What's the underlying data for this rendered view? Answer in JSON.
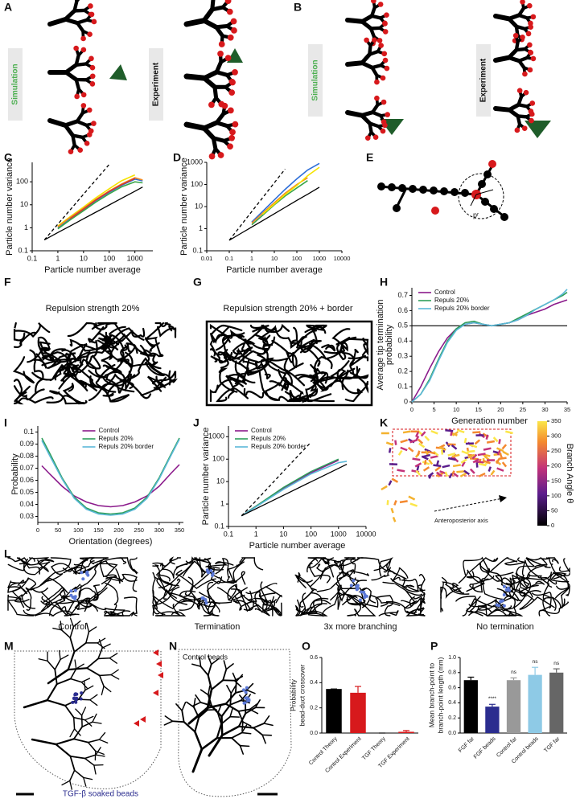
{
  "panels": [
    {
      "panel": "A",
      "labels": [
        "Simulation",
        "Experiment"
      ]
    },
    {
      "panel": "B",
      "labels": [
        "Simulation",
        "Experiment"
      ]
    },
    {
      "panel": "E",
      "label": "pʳ"
    },
    {
      "panel": "F",
      "title": "Repulsion strength 20%"
    },
    {
      "panel": "G",
      "title": "Repulsion strength 20% + border"
    },
    {
      "panel": "K",
      "colorbar_label": "Branch Angle θ",
      "colorbar_lim": [
        0,
        350
      ],
      "colorbar_ticks": [
        0,
        50,
        100,
        150,
        200,
        250,
        300,
        350
      ],
      "annotation": "Anteroposterior axis"
    },
    {
      "panel": "L",
      "captions": [
        "Control",
        "Termination",
        "3x more branching",
        "No termination"
      ]
    },
    {
      "panel": "M",
      "annotation": "TGF-β soaked beads"
    },
    {
      "panel": "N",
      "annotation": "Control beads"
    }
  ],
  "chart_data": [
    {
      "panel": "C",
      "type": "line",
      "xlog": true,
      "ylog": true,
      "xlabel": "Particle number average",
      "ylabel": [
        "Particle number variance"
      ],
      "xlim": [
        0.1,
        5000
      ],
      "ylim": [
        0.1,
        700
      ],
      "xticks": [
        0.1,
        1,
        10,
        100,
        1000
      ],
      "yticks": [
        0.1,
        1,
        10,
        100
      ],
      "x": [
        0.3,
        1,
        3,
        10,
        30,
        100,
        300,
        1000,
        2000
      ],
      "series": [
        {
          "color": "#000000",
          "style": "dashed",
          "values": [
            0.3,
            1.43,
            6,
            28.7,
            119,
            572,
            null,
            null,
            null
          ]
        },
        {
          "color": "#000000",
          "style": "solid",
          "values": [
            0.3,
            0.62,
            1.19,
            2.46,
            4.75,
            9.8,
            19,
            39,
            59
          ]
        },
        {
          "color": "#f5e300",
          "style": "solid",
          "values": [
            null,
            1.2,
            3,
            8,
            20,
            50,
            110,
            200,
            null
          ]
        },
        {
          "color": "#2f6fd8",
          "style": "solid",
          "values": [
            null,
            1,
            2.5,
            6,
            15,
            35,
            70,
            130,
            110
          ]
        },
        {
          "color": "#3aa64a",
          "style": "solid",
          "values": [
            null,
            0.9,
            2.2,
            5.5,
            13,
            30,
            60,
            100,
            90
          ]
        },
        {
          "color": "#f08a24",
          "style": "solid",
          "values": [
            null,
            1.1,
            2.8,
            7,
            17,
            40,
            80,
            150,
            120
          ]
        },
        {
          "color": "#d93a2a",
          "style": "solid",
          "values": [
            null,
            null,
            2.5,
            6.5,
            16,
            38,
            75,
            140,
            null
          ]
        }
      ]
    },
    {
      "panel": "D",
      "type": "line",
      "xlog": true,
      "ylog": true,
      "xlabel": "Particle number average",
      "ylabel": [
        "Particle number variance"
      ],
      "xlim": [
        0.01,
        10000
      ],
      "ylim": [
        0.1,
        1000
      ],
      "xticks": [
        0.01,
        0.1,
        1,
        10,
        100,
        1000,
        10000
      ],
      "yticks": [
        0.1,
        1,
        10,
        100,
        1000
      ],
      "x": [
        0.1,
        0.3,
        1,
        3,
        10,
        30,
        100,
        300,
        1000
      ],
      "series": [
        {
          "color": "#000000",
          "style": "dashed",
          "values": [
            0.3,
            1.25,
            6,
            25,
            119,
            500,
            null,
            null,
            null
          ]
        },
        {
          "color": "#000000",
          "style": "solid",
          "values": [
            0.3,
            0.58,
            1.19,
            2.3,
            4.75,
            9.2,
            19,
            36,
            75
          ]
        },
        {
          "color": "#2f6fd8",
          "style": "solid",
          "values": [
            null,
            null,
            2,
            6,
            20,
            60,
            180,
            450,
            900
          ]
        },
        {
          "color": "#f08a24",
          "style": "solid",
          "values": [
            null,
            null,
            1.8,
            5,
            15,
            40,
            100,
            200,
            null
          ]
        },
        {
          "color": "#3aa64a",
          "style": "solid",
          "values": [
            null,
            null,
            1.5,
            4,
            12,
            30,
            70,
            150,
            null
          ]
        },
        {
          "color": "#f5e300",
          "style": "solid",
          "values": [
            null,
            null,
            null,
            4.5,
            13,
            35,
            90,
            250,
            600
          ]
        }
      ]
    },
    {
      "panel": "H",
      "type": "line",
      "xlabel": "Generation number",
      "ylabel": [
        "Average tip termination",
        "probability"
      ],
      "xlim": [
        0,
        35
      ],
      "ylim": [
        0,
        0.75
      ],
      "xticks": [
        0,
        5,
        10,
        15,
        20,
        25,
        30,
        35
      ],
      "yticks": [
        0,
        0.1,
        0.2,
        0.3,
        0.4,
        0.5,
        0.6,
        0.7
      ],
      "hline": 0.5,
      "legend": "upper left",
      "x": [
        0,
        2,
        4,
        6,
        8,
        10,
        12,
        14,
        16,
        18,
        20,
        22,
        24,
        26,
        28,
        30,
        32,
        34,
        35
      ],
      "series": [
        {
          "name": "Control",
          "color": "#8b1a8b",
          "style": "solid",
          "values": [
            0,
            0.1,
            0.22,
            0.33,
            0.42,
            0.48,
            0.51,
            0.52,
            0.51,
            0.5,
            0.51,
            0.52,
            0.54,
            0.57,
            0.59,
            0.61,
            0.64,
            0.66,
            0.67
          ]
        },
        {
          "name": "Repuls 20%",
          "color": "#2e9e5b",
          "style": "solid",
          "values": [
            0,
            0.05,
            0.15,
            0.28,
            0.4,
            0.48,
            0.52,
            0.53,
            0.51,
            0.5,
            0.51,
            0.52,
            0.55,
            0.58,
            0.61,
            0.64,
            0.67,
            0.7,
            0.72
          ]
        },
        {
          "name": "Repuls 20% border",
          "color": "#5bb8d8",
          "style": "solid",
          "values": [
            0,
            0.05,
            0.14,
            0.27,
            0.39,
            0.47,
            0.51,
            0.52,
            0.51,
            0.5,
            0.51,
            0.52,
            0.54,
            0.57,
            0.61,
            0.64,
            0.67,
            0.71,
            0.74
          ]
        }
      ]
    },
    {
      "panel": "I",
      "type": "line",
      "xlabel": "Orientation (degrees)",
      "ylabel": [
        "Probability"
      ],
      "xlim": [
        0,
        360
      ],
      "ylim": [
        0.025,
        0.105
      ],
      "xticks": [
        0,
        50,
        100,
        150,
        200,
        250,
        300,
        350
      ],
      "yticks": [
        0.03,
        0.04,
        0.05,
        0.06,
        0.07,
        0.08,
        0.09,
        0.1
      ],
      "legend": "upper center",
      "x": [
        10,
        30,
        60,
        90,
        120,
        150,
        180,
        210,
        240,
        270,
        300,
        330,
        350
      ],
      "series": [
        {
          "name": "Control",
          "color": "#8b1a8b",
          "style": "solid",
          "values": [
            0.072,
            0.065,
            0.055,
            0.047,
            0.042,
            0.039,
            0.038,
            0.039,
            0.042,
            0.047,
            0.055,
            0.066,
            0.073
          ]
        },
        {
          "name": "Repuls 20%",
          "color": "#2e9e5b",
          "style": "solid",
          "values": [
            0.095,
            0.082,
            0.062,
            0.046,
            0.037,
            0.033,
            0.032,
            0.033,
            0.037,
            0.046,
            0.062,
            0.082,
            0.095
          ]
        },
        {
          "name": "Repuls 20% border",
          "color": "#5bb8d8",
          "style": "solid",
          "values": [
            0.093,
            0.08,
            0.061,
            0.045,
            0.036,
            0.032,
            0.031,
            0.032,
            0.036,
            0.045,
            0.061,
            0.081,
            0.094
          ]
        }
      ]
    },
    {
      "panel": "J",
      "type": "line",
      "xlog": true,
      "ylog": true,
      "xlabel": "Particle number average",
      "ylabel": [
        "Particle number variance"
      ],
      "xlim": [
        0.1,
        10000
      ],
      "ylim": [
        0.1,
        3000
      ],
      "xticks": [
        0.1,
        1,
        10,
        100,
        1000,
        10000
      ],
      "yticks": [
        0.1,
        1,
        10,
        100,
        1000
      ],
      "legend": "upper left",
      "x": [
        0.3,
        1,
        10,
        100,
        1000,
        2000
      ],
      "series": [
        {
          "name": "Control",
          "color": "#8b1a8b",
          "style": "solid",
          "values": [
            0.3,
            0.8,
            5,
            25,
            90,
            null
          ]
        },
        {
          "name": "Repuls 20%",
          "color": "#2e9e5b",
          "style": "solid",
          "values": [
            0.3,
            0.8,
            5.5,
            28,
            100,
            null
          ]
        },
        {
          "name": "Repuls 20% border",
          "color": "#5bb8d8",
          "style": "solid",
          "values": [
            0.3,
            0.75,
            4.5,
            22,
            70,
            80
          ]
        },
        {
          "color": "#000000",
          "style": "dashed",
          "values": [
            0.3,
            1.4,
            29,
            572,
            null,
            null
          ]
        },
        {
          "color": "#000000",
          "style": "solid",
          "values": [
            0.3,
            0.62,
            2.46,
            9.8,
            39,
            59
          ]
        }
      ]
    },
    {
      "panel": "O",
      "type": "bar",
      "ylabel": [
        "Probability",
        "bead-duct crossover"
      ],
      "ylim": [
        0,
        0.6
      ],
      "yticks": [
        {
          "value": 0,
          "label": "0.0"
        },
        0.2,
        0.4,
        0.6
      ],
      "categories": [
        "Control Theory",
        "Control Experiment",
        "TGF Theory",
        "TGF Experiment"
      ],
      "values": [
        0.35,
        0.32,
        0,
        0.01
      ],
      "errors": [
        0,
        0.05,
        0,
        0.01
      ],
      "colors": [
        "#000000",
        "#d7191c",
        "#000000",
        "#d7191c"
      ]
    },
    {
      "panel": "P",
      "type": "bar",
      "ylabel": [
        "Mean branch-point to",
        "branch-point length (mm)"
      ],
      "ylim": [
        0,
        1.0
      ],
      "yticks": [
        {
          "value": 0,
          "label": "0.0"
        },
        0.2,
        0.4,
        0.6,
        0.8,
        {
          "value": 1,
          "label": "1.0"
        }
      ],
      "categories": [
        "FGF far",
        "FGF beads",
        "Control far",
        "Control beads",
        "TGF far"
      ],
      "values": [
        0.7,
        0.35,
        0.7,
        0.77,
        0.8
      ],
      "errors": [
        0.04,
        0.03,
        0.03,
        0.1,
        0.05
      ],
      "annotations": [
        null,
        "****",
        "ns",
        "ns",
        "ns"
      ],
      "colors": [
        "#000000",
        "#2b2d8f",
        "#999999",
        "#8ecae6",
        "#666666"
      ]
    }
  ]
}
